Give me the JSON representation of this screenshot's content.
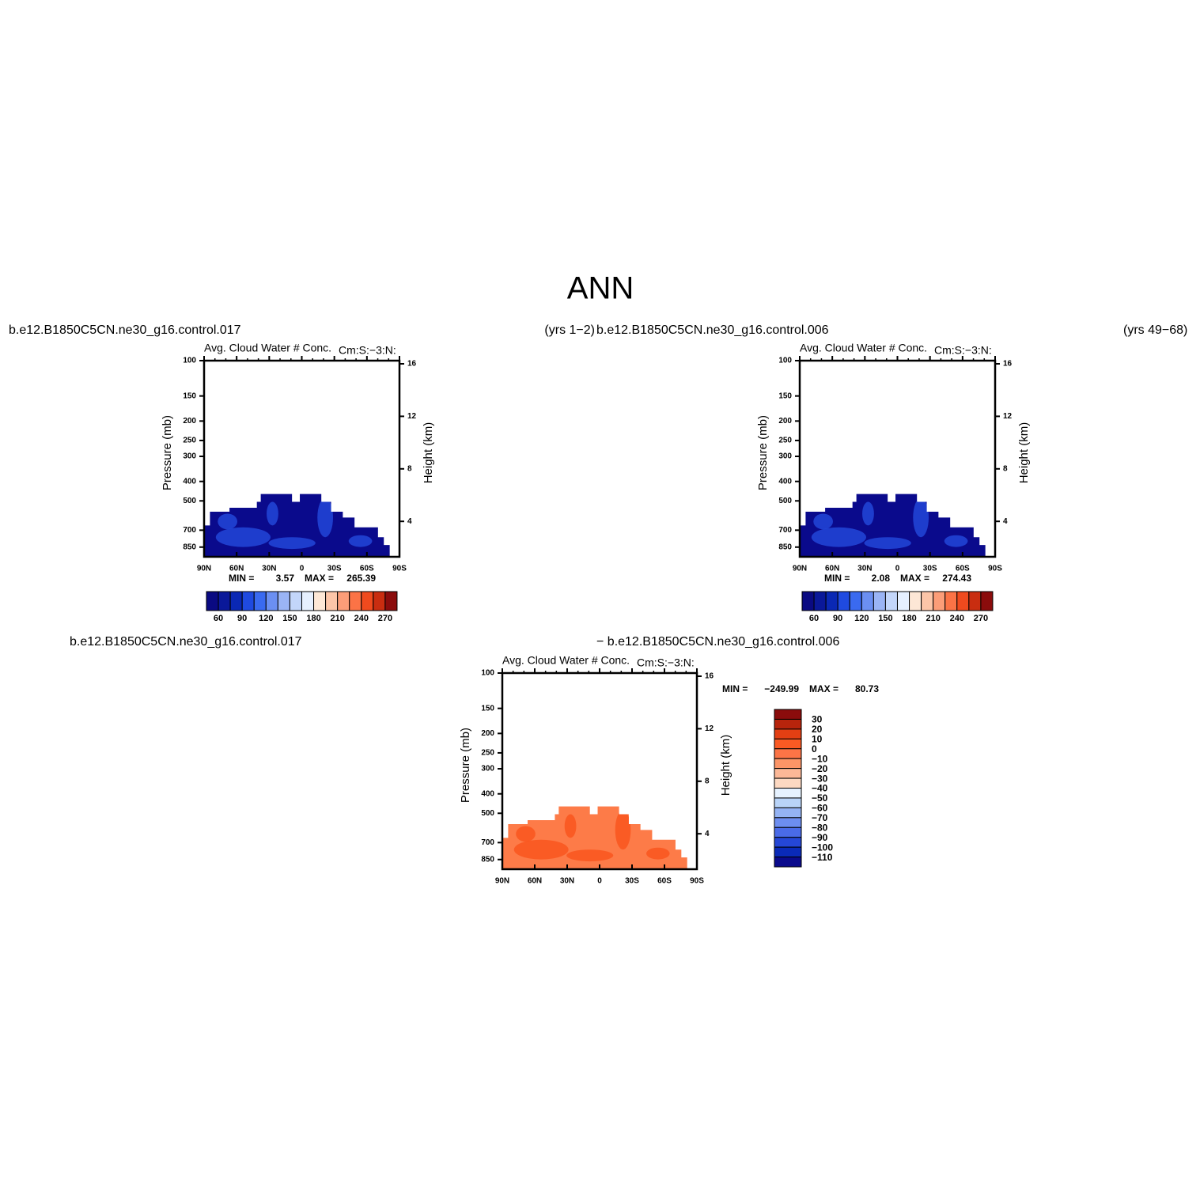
{
  "title": "ANN",
  "panels": [
    {
      "case": "b.e12.B1850C5CN.ne30_g16.control.017",
      "years": "(yrs 1−2)",
      "subtitle": "Avg. Cloud Water # Conc.",
      "units_tag": "Cm:S:−3:N:",
      "y_label": "Pressure (mb)",
      "y2_label": "Height (km)",
      "ylim": [
        100,
        950
      ],
      "yticks": [
        100,
        150,
        200,
        250,
        300,
        400,
        500,
        700,
        850
      ],
      "log_y": true,
      "y2ticks": [
        4,
        8,
        12,
        16
      ],
      "xticks": [
        "90N",
        "60N",
        "30N",
        "0",
        "30S",
        "60S",
        "90S"
      ],
      "fill_color": "#0a0a8c",
      "blob_color": "#2247d8",
      "min_label": "MIN =",
      "min": 3.57,
      "max_label": "MAX =",
      "max": 265.39,
      "colorbar": {
        "ticks": [
          60,
          90,
          120,
          150,
          180,
          210,
          240,
          270
        ],
        "colors": [
          "#0a0a82",
          "#0a1899",
          "#0a28b4",
          "#1f4ae0",
          "#3a6af0",
          "#6b8ff2",
          "#9ab4f5",
          "#c3d6fa",
          "#e6f0ff",
          "#fde7d6",
          "#fcc5a8",
          "#fc9d78",
          "#fb7346",
          "#f04a1e",
          "#c92d10",
          "#8b0c0c"
        ]
      }
    },
    {
      "case": "b.e12.B1850C5CN.ne30_g16.control.006",
      "years": "(yrs 49−68)",
      "subtitle": "Avg. Cloud Water # Conc.",
      "units_tag": "Cm:S:−3:N:",
      "y_label": "Pressure (mb)",
      "y2_label": "Height (km)",
      "ylim": [
        100,
        950
      ],
      "yticks": [
        100,
        150,
        200,
        250,
        300,
        400,
        500,
        700,
        850
      ],
      "log_y": true,
      "y2ticks": [
        4,
        8,
        12,
        16
      ],
      "xticks": [
        "90N",
        "60N",
        "30N",
        "0",
        "30S",
        "60S",
        "90S"
      ],
      "fill_color": "#0a0a8c",
      "blob_color": "#2247d8",
      "min_label": "MIN =",
      "min": 2.08,
      "max_label": "MAX =",
      "max": 274.43,
      "colorbar": {
        "ticks": [
          60,
          90,
          120,
          150,
          180,
          210,
          240,
          270
        ],
        "colors": [
          "#0a0a82",
          "#0a1899",
          "#0a28b4",
          "#1f4ae0",
          "#3a6af0",
          "#6b8ff2",
          "#9ab4f5",
          "#c3d6fa",
          "#e6f0ff",
          "#fde7d6",
          "#fcc5a8",
          "#fc9d78",
          "#fb7346",
          "#f04a1e",
          "#c92d10",
          "#8b0c0c"
        ]
      }
    }
  ],
  "difference": {
    "case_a": "b.e12.B1850C5CN.ne30_g16.control.017",
    "case_b": "− b.e12.B1850C5CN.ne30_g16.control.006",
    "subtitle": "Avg. Cloud Water # Conc.",
    "units_tag": "Cm:S:−3:N:",
    "y_label": "Pressure (mb)",
    "y2_label": "Height (km)",
    "ylim": [
      100,
      950
    ],
    "yticks": [
      100,
      150,
      200,
      250,
      300,
      400,
      500,
      700,
      850
    ],
    "log_y": true,
    "y2ticks": [
      4,
      8,
      12,
      16
    ],
    "xticks": [
      "90N",
      "60N",
      "30N",
      "0",
      "30S",
      "60S",
      "90S"
    ],
    "fill_color": "#fd7b48",
    "blob_color": "#f9561f",
    "min_label": "MIN =",
    "min": {
      "value": -249.99,
      "label": "−249.99"
    },
    "max_label": "MAX =",
    "max": 80.73,
    "colorbar": {
      "ticks": [
        30,
        20,
        10,
        0,
        {
          "value": -10,
          "label": "−10"
        },
        {
          "value": -20,
          "label": "−20"
        },
        {
          "value": -30,
          "label": "−30"
        },
        {
          "value": -40,
          "label": "−40"
        },
        {
          "value": -50,
          "label": "−50"
        },
        {
          "value": -60,
          "label": "−60"
        },
        {
          "value": -70,
          "label": "−70"
        },
        {
          "value": -80,
          "label": "−80"
        },
        {
          "value": -90,
          "label": "−90"
        },
        {
          "value": -100,
          "label": "−100"
        },
        {
          "value": -110,
          "label": "−110"
        }
      ],
      "colors": [
        "#8b0c0c",
        "#b8240c",
        "#e33f13",
        "#fb5a23",
        "#fc7446",
        "#fc9567",
        "#fcb897",
        "#fdd9c2",
        "#e6f2ff",
        "#b9d4f8",
        "#94b3f4",
        "#6d8ef0",
        "#4a6be8",
        "#2547d6",
        "#0a2ab8",
        "#0a0a8c"
      ]
    }
  }
}
